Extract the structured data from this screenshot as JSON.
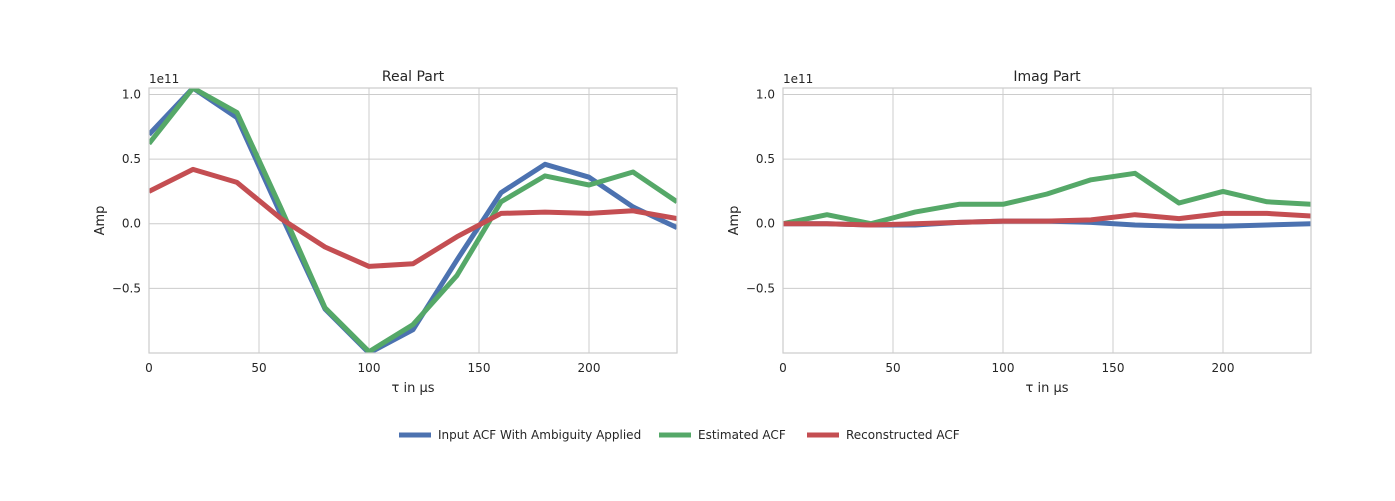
{
  "chart_data": [
    {
      "type": "line",
      "title": "Real Part",
      "xlabel": "τ in μs",
      "ylabel": "Amp",
      "offset_text": "1e11",
      "xlim": [
        0,
        240
      ],
      "ylim": [
        -1.0,
        1.05
      ],
      "x_ticks": [
        0,
        50,
        100,
        150,
        200
      ],
      "x_tick_labels": [
        "0",
        "50",
        "100",
        "150",
        "200"
      ],
      "y_ticks": [
        1.0,
        0.5,
        0.0,
        -0.5
      ],
      "y_tick_labels": [
        "1.0",
        "0.5",
        "0.0",
        "−0.5"
      ],
      "grid": true,
      "x": [
        0,
        20,
        40,
        60,
        80,
        100,
        120,
        140,
        160,
        180,
        200,
        220,
        240
      ],
      "series": [
        {
          "name": "Input ACF With Ambiguity Applied",
          "color": "#4c72b0",
          "values": [
            0.69,
            1.05,
            0.82,
            0.07,
            -0.66,
            -1.0,
            -0.82,
            -0.28,
            0.24,
            0.46,
            0.36,
            0.13,
            -0.03
          ]
        },
        {
          "name": "Estimated ACF",
          "color": "#55a868",
          "values": [
            0.62,
            1.05,
            0.86,
            0.12,
            -0.65,
            -0.99,
            -0.78,
            -0.4,
            0.17,
            0.37,
            0.3,
            0.4,
            0.17
          ]
        },
        {
          "name": "Reconstructed ACF",
          "color": "#c44e52",
          "values": [
            0.25,
            0.42,
            0.32,
            0.04,
            -0.18,
            -0.33,
            -0.31,
            -0.1,
            0.08,
            0.09,
            0.08,
            0.1,
            0.04
          ]
        }
      ]
    },
    {
      "type": "line",
      "title": "Imag Part",
      "xlabel": "τ in μs",
      "ylabel": "Amp",
      "offset_text": "1e11",
      "xlim": [
        0,
        240
      ],
      "ylim": [
        -1.0,
        1.05
      ],
      "x_ticks": [
        0,
        50,
        100,
        150,
        200
      ],
      "x_tick_labels": [
        "0",
        "50",
        "100",
        "150",
        "200"
      ],
      "y_ticks": [
        1.0,
        0.5,
        0.0,
        -0.5
      ],
      "y_tick_labels": [
        "1.0",
        "0.5",
        "0.0",
        "−0.5"
      ],
      "grid": true,
      "x": [
        0,
        20,
        40,
        60,
        80,
        100,
        120,
        140,
        160,
        180,
        200,
        220,
        240
      ],
      "series": [
        {
          "name": "Input ACF With Ambiguity Applied",
          "color": "#4c72b0",
          "values": [
            0.0,
            0.0,
            -0.01,
            -0.01,
            0.01,
            0.02,
            0.02,
            0.01,
            -0.01,
            -0.02,
            -0.02,
            -0.01,
            0.0
          ]
        },
        {
          "name": "Estimated ACF",
          "color": "#55a868",
          "values": [
            0.0,
            0.07,
            0.0,
            0.09,
            0.15,
            0.15,
            0.23,
            0.34,
            0.39,
            0.16,
            0.25,
            0.17,
            0.15
          ]
        },
        {
          "name": "Reconstructed ACF",
          "color": "#c44e52",
          "values": [
            0.0,
            0.0,
            -0.01,
            0.0,
            0.01,
            0.02,
            0.02,
            0.03,
            0.07,
            0.04,
            0.08,
            0.08,
            0.06
          ]
        }
      ]
    }
  ],
  "legend": {
    "placement": "bottom-center",
    "items": [
      {
        "label": "Input ACF With Ambiguity Applied",
        "color": "#4c72b0"
      },
      {
        "label": "Estimated ACF",
        "color": "#55a868"
      },
      {
        "label": "Reconstructed ACF",
        "color": "#c44e52"
      }
    ]
  },
  "colors": {
    "grid": "#cccccc",
    "axes_edge": "#cccccc",
    "background": "#ffffff"
  }
}
